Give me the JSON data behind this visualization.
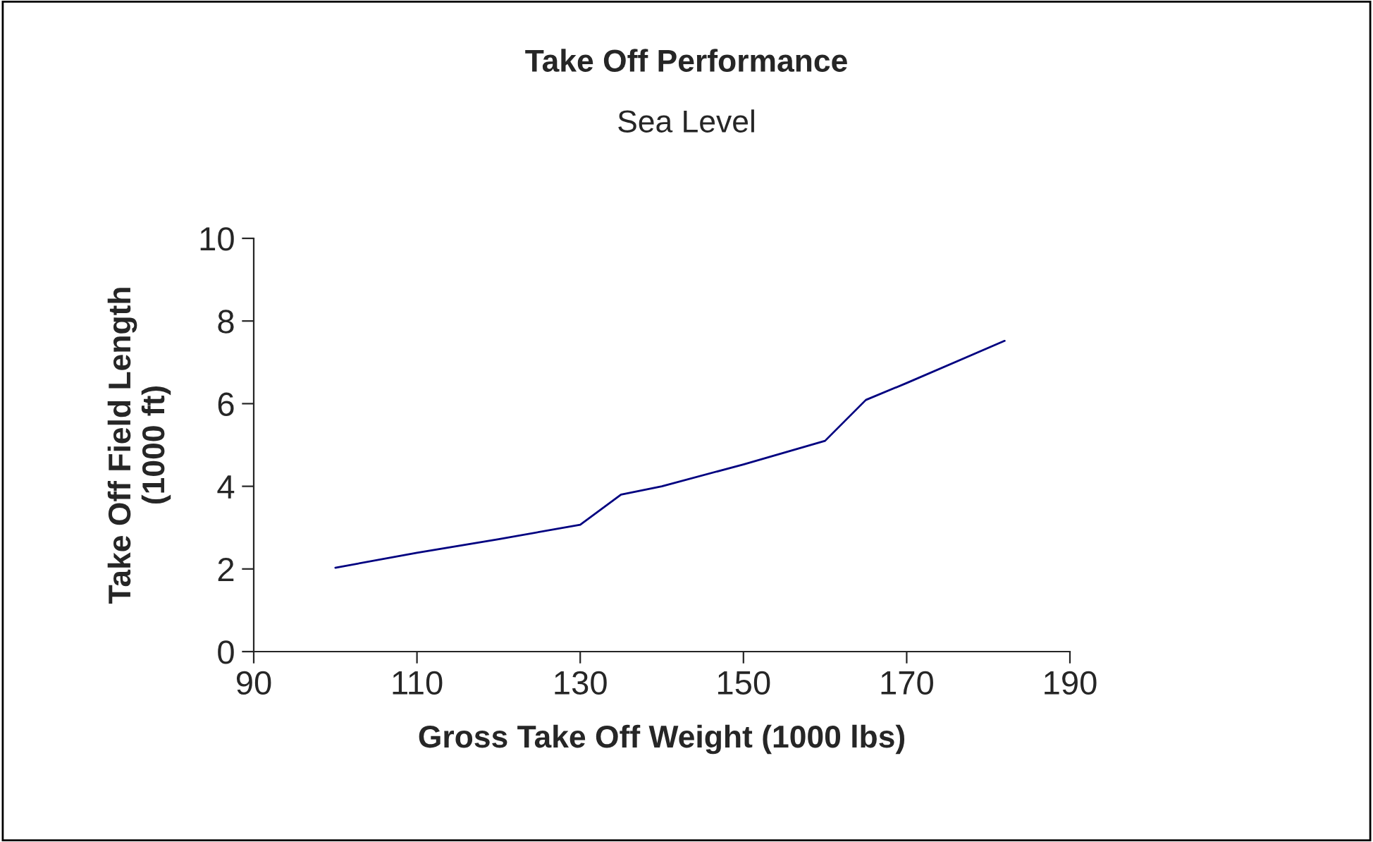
{
  "chart_data": {
    "type": "line",
    "title": "Take Off Performance",
    "subtitle": "Sea Level",
    "xlabel": "Gross Take Off Weight (1000 lbs)",
    "ylabel": "Take Off Field Length\n(1000 ft)",
    "x": [
      100,
      110,
      120,
      130,
      135,
      140,
      150,
      160,
      165,
      170,
      182
    ],
    "series": [
      {
        "color": "#000080",
        "values": [
          2.03,
          2.39,
          2.72,
          3.07,
          3.8,
          4.0,
          4.53,
          5.1,
          6.09,
          6.5,
          7.52
        ]
      }
    ],
    "xlim": [
      90,
      190
    ],
    "xticks": [
      90,
      110,
      130,
      150,
      170,
      190
    ],
    "ylim": [
      0,
      10
    ],
    "yticks": [
      0,
      2,
      4,
      6,
      8,
      10
    ],
    "grid": false,
    "legend": false,
    "marker": "none",
    "line_style": "solid"
  }
}
